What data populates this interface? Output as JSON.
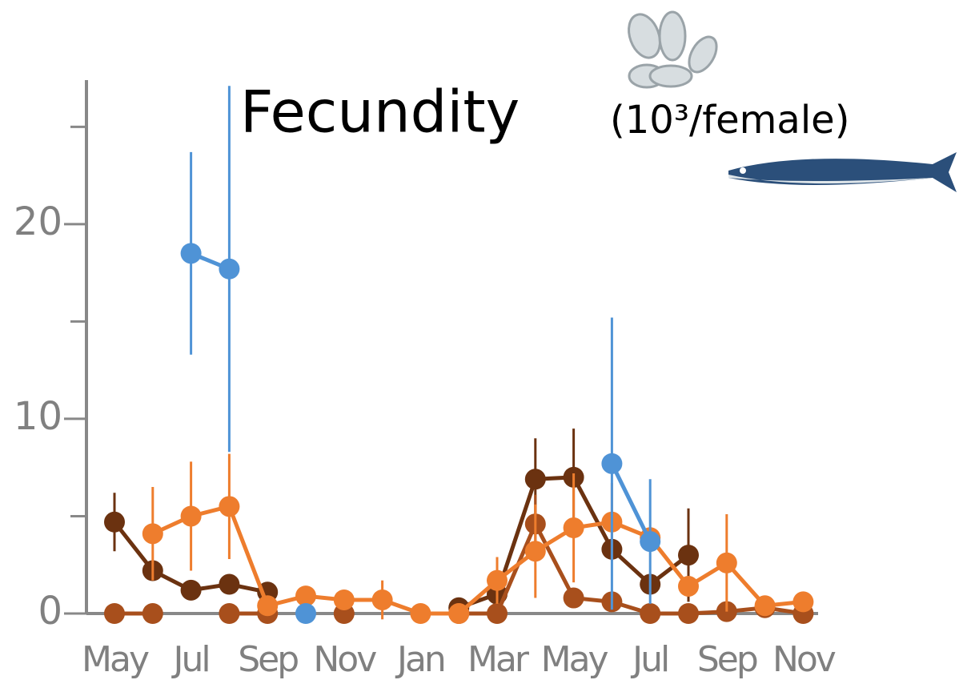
{
  "chart_data": {
    "type": "line",
    "title": "Fecundity",
    "subtitle": "(10³/female)",
    "categories": [
      "May",
      null,
      "Jul",
      null,
      "Sep",
      null,
      "Nov",
      null,
      "Jan",
      null,
      "Mar",
      null,
      "May",
      null,
      "Jul",
      null,
      "Sep",
      null,
      "Nov"
    ],
    "series": [
      {
        "color": "#6b3210",
        "values": [
          4.7,
          2.2,
          1.2,
          1.5,
          1.1,
          null,
          null,
          null,
          null,
          0.3,
          1.0,
          6.9,
          7.0,
          3.3,
          1.5,
          3.0,
          null,
          null,
          null
        ],
        "errors": [
          1.5,
          null,
          null,
          null,
          null,
          null,
          null,
          null,
          null,
          null,
          null,
          2.1,
          2.5,
          null,
          null,
          2.4,
          null,
          null,
          null
        ]
      },
      {
        "color": "#a84f1c",
        "values": [
          0,
          0,
          null,
          0,
          0,
          null,
          0,
          null,
          null,
          0,
          0,
          4.6,
          0.8,
          0.6,
          0,
          0,
          0.1,
          0.3,
          0
        ],
        "errors": [
          null,
          null,
          null,
          null,
          null,
          null,
          null,
          null,
          null,
          null,
          null,
          1.5,
          null,
          null,
          null,
          null,
          null,
          null,
          null
        ]
      },
      {
        "color": "#ee7d2d",
        "values": [
          null,
          4.1,
          5.0,
          5.5,
          0.4,
          0.9,
          0.7,
          0.7,
          0.0,
          0.0,
          1.7,
          3.2,
          4.4,
          4.7,
          3.9,
          1.4,
          2.6,
          0.4,
          0.6
        ],
        "errors": [
          null,
          2.4,
          2.8,
          2.7,
          null,
          null,
          null,
          1.0,
          null,
          null,
          1.2,
          2.4,
          2.8,
          2.0,
          null,
          null,
          2.5,
          null,
          null
        ]
      },
      {
        "color": "#4f93d6",
        "values": [
          null,
          null,
          18.5,
          17.7,
          null,
          0,
          null,
          null,
          null,
          null,
          null,
          null,
          null,
          7.7,
          3.7,
          null,
          null,
          null,
          null
        ],
        "errors": [
          null,
          null,
          5.2,
          9.4,
          null,
          null,
          null,
          null,
          null,
          null,
          null,
          null,
          null,
          7.5,
          3.2,
          null,
          null,
          null,
          null
        ]
      }
    ],
    "ylim": [
      0,
      27.4
    ],
    "yticks": [
      0,
      10,
      20
    ],
    "yminor": [
      5,
      15,
      25
    ]
  }
}
